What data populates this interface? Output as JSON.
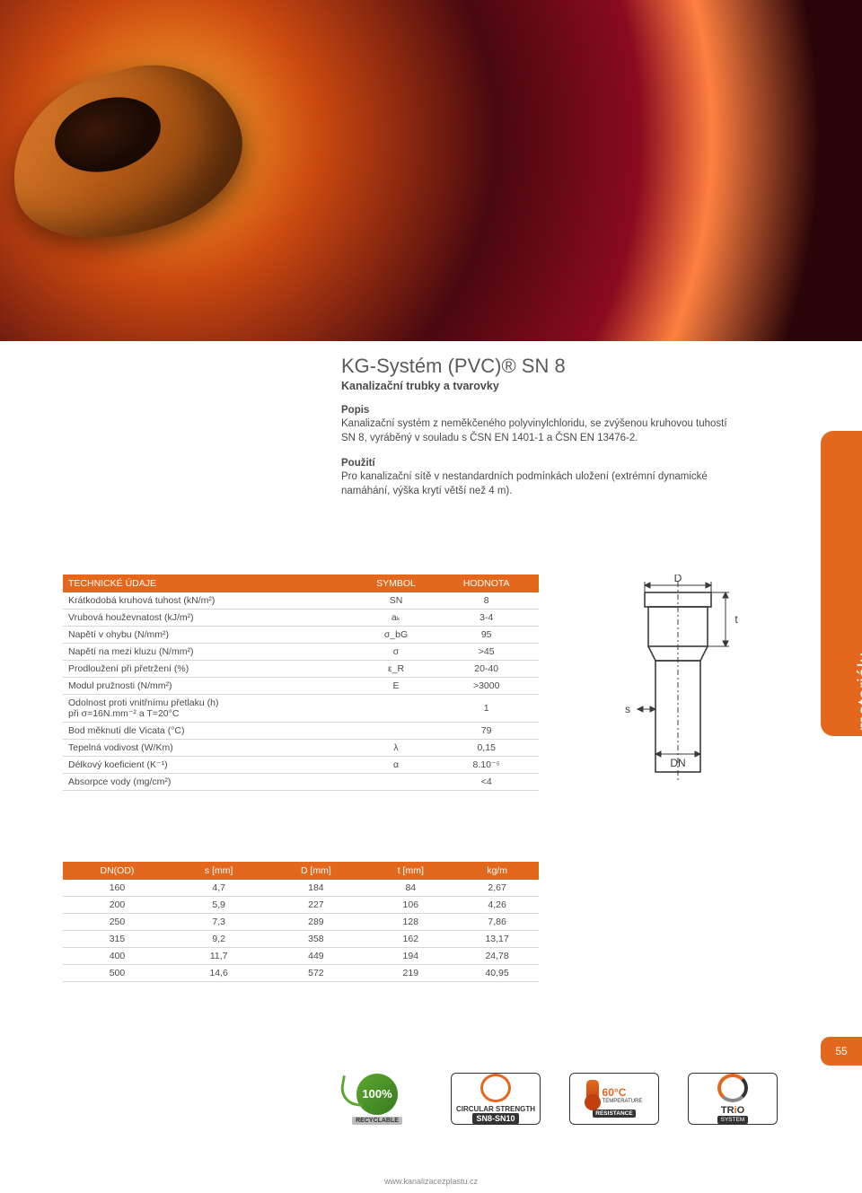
{
  "hero": {
    "alt": "PVC pipe fitting on abstract red smoke background"
  },
  "header": {
    "title": "KG-Systém (PVC)® SN 8",
    "subtitle": "Kanalizační trubky a tvarovky"
  },
  "sections": [
    {
      "head": "Popis",
      "body": "Kanalizační systém z neměkčeného polyvinylchloridu, se zvýšenou kruhovou tuhostí SN 8, vyráběný v souladu s ČSN EN 1401-1 a ČSN EN 13476-2."
    },
    {
      "head": "Použití",
      "body": "Pro kanalizační sítě v nestandardních podmínkách uložení (extrémní dynamické namáhání, výška krytí větší než 4 m)."
    }
  ],
  "sidebar": {
    "label": "Vlastnosti materiálu"
  },
  "tech": {
    "headers": [
      "TECHNICKÉ ÚDAJE",
      "SYMBOL",
      "HODNOTA"
    ],
    "rows": [
      {
        "label": "Krátkodobá kruhová tuhost (kN/m²)",
        "symbol": "SN",
        "value": "8"
      },
      {
        "label": "Vrubová houževnatost (kJ/m²)",
        "symbol": "aₖ",
        "value": "3-4"
      },
      {
        "label": "Napětí v ohybu (N/mm²)",
        "symbol": "σ_bG",
        "value": "95"
      },
      {
        "label": "Napětí na mezi kluzu (N/mm²)",
        "symbol": "σ",
        "value": ">45"
      },
      {
        "label": "Prodloužení při přetržení (%)",
        "symbol": "ε_R",
        "value": "20-40"
      },
      {
        "label": "Modul pružnosti (N/mm²)",
        "symbol": "E",
        "value": ">3000"
      },
      {
        "label": "Odolnost proti vnitřnímu přetlaku (h)\npři σ=16N.mm⁻² a T=20°C",
        "symbol": "",
        "value": "1"
      },
      {
        "label": "Bod měknutí dle Vicata (°C)",
        "symbol": "",
        "value": "79"
      },
      {
        "label": "Tepelná vodivost (W/Km)",
        "symbol": "λ",
        "value": "0,15"
      },
      {
        "label": "Délkový koeficient (K⁻¹)",
        "symbol": "α",
        "value": "8.10⁻⁵"
      },
      {
        "label": "Absorpce vody (mg/cm²)",
        "symbol": "",
        "value": "<4"
      }
    ]
  },
  "diagram": {
    "labels": {
      "D": "D",
      "DN": "DN",
      "s": "s",
      "t": "t"
    },
    "stroke": "#3a3a3a",
    "dash": "4,3"
  },
  "dims": {
    "headers": [
      "DN(OD)",
      "s [mm]",
      "D [mm]",
      "t [mm]",
      "kg/m"
    ],
    "rows": [
      [
        "160",
        "4,7",
        "184",
        "84",
        "2,67"
      ],
      [
        "200",
        "5,9",
        "227",
        "106",
        "4,26"
      ],
      [
        "250",
        "7,3",
        "289",
        "128",
        "7,86"
      ],
      [
        "315",
        "9,2",
        "358",
        "162",
        "13,17"
      ],
      [
        "400",
        "11,7",
        "449",
        "194",
        "24,78"
      ],
      [
        "500",
        "14,6",
        "572",
        "219",
        "40,95"
      ]
    ]
  },
  "badges": {
    "recyclable": {
      "pct": "100%",
      "label": "RECYCLABLE"
    },
    "circular": {
      "line1": "CIRCULAR",
      "line2": "STRENGTH",
      "sn": "SN8-SN10"
    },
    "temp": {
      "value": "60°C",
      "label1": "TEMPERATURE",
      "label2": "RESISTANCE"
    },
    "trio": {
      "label": "TRiO",
      "sub": "SYSTEM"
    }
  },
  "page_number": "55",
  "footer_url": "www.kanalizacezplastu.cz",
  "colors": {
    "orange": "#e3681d",
    "text": "#4a4a4a",
    "border": "#d8d8d8"
  }
}
